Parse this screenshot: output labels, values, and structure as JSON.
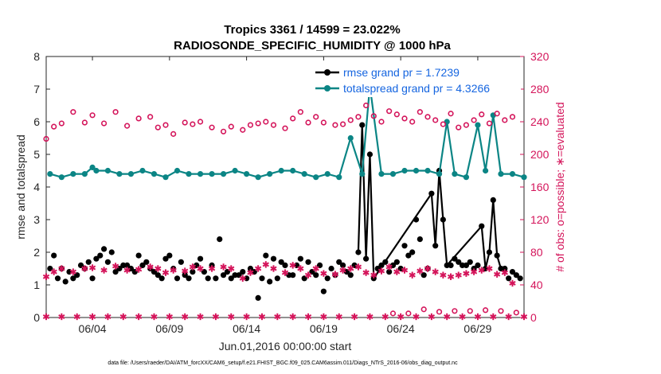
{
  "colors": {
    "rmse": "#000000",
    "spread": "#0b8585",
    "obs": "#d4145a",
    "axis_left": "#262626"
  },
  "chart_data": {
    "type": "line",
    "title": "Tropics 3361 / 14599 = 23.022%",
    "subtitle": "RADIOSONDE_SPECIFIC_HUMIDITY @ 1000 hPa",
    "xlabel": "Jun.01,2016 00:00:00 start",
    "ylabel": "rmse and totalspread",
    "ylabel_right": "# of obs: o=possible; ∗=evaluated",
    "xlim": [
      1,
      32
    ],
    "ylim": [
      0,
      8
    ],
    "ylim_right": [
      0,
      320
    ],
    "xticks": [
      {
        "x": 4,
        "label": "06/04"
      },
      {
        "x": 9,
        "label": "06/09"
      },
      {
        "x": 14,
        "label": "06/14"
      },
      {
        "x": 19,
        "label": "06/19"
      },
      {
        "x": 24,
        "label": "06/24"
      },
      {
        "x": 29,
        "label": "06/29"
      }
    ],
    "yticks": [
      "0",
      "1",
      "2",
      "3",
      "4",
      "5",
      "6",
      "7",
      "8"
    ],
    "yticks_right": [
      "0",
      "40",
      "80",
      "120",
      "160",
      "200",
      "240",
      "280",
      "320"
    ],
    "legend": {
      "position": "top-right",
      "rmse": "rmse grand pr = 1.7239",
      "spread": "totalspread grand pr = 4.3266"
    },
    "footer": "data file: /Users/raeder/DAI/ATM_forcXX/CAM6_setup/f.e21.FHIST_BGC.f09_025.CAM6assim.011/Diags_NTrS_2016-06/obs_diag_output.nc",
    "series": [
      {
        "name": "rmse",
        "axis": "left",
        "style": "line-dot",
        "x": [
          21.25,
          21.5,
          21.75,
          22,
          22.25,
          26,
          26.25,
          26.5,
          26.75,
          27,
          29.25,
          29.5,
          29.75,
          30,
          30.25,
          30.5,
          30.75
        ],
        "y": [
          2.0,
          5.9,
          1.8,
          5.0,
          1.2,
          3.8,
          2.2,
          4.5,
          3.0,
          1.6,
          2.8,
          1.5,
          2.0,
          3.6,
          1.9,
          1.5,
          1.5
        ]
      },
      {
        "name": "rmse_scatter",
        "axis": "left",
        "style": "dot",
        "x": [
          1.25,
          1.5,
          1.75,
          2,
          2.25,
          2.5,
          2.75,
          3,
          3.25,
          3.5,
          3.75,
          4,
          4.25,
          4.5,
          4.75,
          5,
          5.25,
          5.5,
          5.75,
          6,
          6.25,
          6.5,
          6.75,
          7,
          7.25,
          7.5,
          7.75,
          8,
          8.25,
          8.5,
          8.75,
          9,
          9.25,
          9.5,
          9.75,
          10,
          10.25,
          10.5,
          10.75,
          11,
          11.25,
          11.5,
          11.75,
          12,
          12.25,
          12.5,
          12.75,
          13,
          13.25,
          13.5,
          13.75,
          14,
          14.25,
          14.5,
          14.75,
          15,
          15.25,
          15.5,
          15.75,
          16,
          16.25,
          16.5,
          16.75,
          17,
          17.25,
          17.5,
          17.75,
          18,
          18.25,
          18.5,
          18.75,
          19,
          19.25,
          19.5,
          19.75,
          20,
          20.25,
          20.5,
          20.75,
          21,
          22.5,
          22.75,
          23,
          23.25,
          23.5,
          23.75,
          24,
          24.25,
          24.5,
          24.75,
          25,
          25.25,
          25.5,
          25.75,
          27.25,
          27.5,
          27.75,
          28,
          28.25,
          28.5,
          28.75,
          29,
          31,
          31.25,
          31.5,
          31.75
        ],
        "y": [
          1.5,
          1.9,
          1.2,
          1.5,
          1.1,
          1.4,
          1.2,
          1.3,
          1.6,
          1.5,
          1.7,
          1.2,
          1.8,
          1.9,
          2.1,
          1.7,
          2.0,
          1.4,
          1.5,
          1.6,
          1.6,
          1.5,
          1.4,
          1.9,
          1.6,
          1.7,
          1.5,
          1.4,
          1.3,
          1.2,
          1.8,
          1.9,
          1.5,
          1.2,
          1.7,
          1.3,
          1.2,
          1.4,
          1.6,
          1.8,
          1.4,
          1.2,
          1.6,
          1.2,
          2.4,
          1.3,
          1.4,
          1.2,
          1.3,
          1.3,
          1.4,
          1.2,
          1.5,
          1.4,
          0.6,
          1.2,
          1.9,
          1.1,
          1.8,
          1.2,
          1.7,
          1.6,
          1.3,
          1.3,
          1.6,
          1.8,
          1.2,
          1.7,
          1.4,
          1.3,
          1.6,
          0.8,
          1.2,
          1.5,
          1.3,
          1.7,
          1.6,
          1.4,
          1.3,
          1.6,
          1.5,
          1.6,
          1.7,
          1.4,
          1.6,
          1.7,
          1.5,
          2.2,
          1.9,
          2.0,
          3.0,
          2.4,
          1.3,
          1.5,
          1.6,
          1.8,
          1.7,
          1.6,
          1.6,
          1.7,
          1.5,
          1.6,
          1.2,
          1.4,
          1.3,
          1.2
        ]
      },
      {
        "name": "totalspread",
        "axis": "left",
        "style": "line-dot",
        "x": [
          1.25,
          2,
          2.75,
          3.5,
          4,
          4.25,
          5,
          5.75,
          6.5,
          7.25,
          8,
          8.75,
          9.5,
          10.25,
          11,
          11.75,
          12.5,
          13.25,
          14,
          14.75,
          15.5,
          16.25,
          17,
          17.75,
          18.5,
          19.25,
          20,
          20.75,
          21.5,
          22,
          22.75,
          23.5,
          24.25,
          25,
          25.75,
          26.5,
          27,
          27.5,
          28.25,
          29,
          29.5,
          30,
          30.5,
          31.25,
          32
        ],
        "y": [
          4.4,
          4.3,
          4.4,
          4.4,
          4.6,
          4.5,
          4.5,
          4.4,
          4.4,
          4.5,
          4.4,
          4.3,
          4.5,
          4.4,
          4.4,
          4.4,
          4.4,
          4.5,
          4.4,
          4.3,
          4.4,
          4.5,
          4.5,
          4.4,
          4.3,
          4.4,
          4.3,
          5.5,
          4.4,
          7.1,
          4.4,
          4.4,
          4.5,
          4.5,
          4.5,
          4.4,
          6.0,
          4.4,
          4.3,
          5.9,
          4.5,
          6.2,
          4.4,
          4.4,
          4.3
        ]
      },
      {
        "name": "possible",
        "axis": "right",
        "style": "circle",
        "x": [
          1,
          1.5,
          2,
          2.75,
          3.5,
          4,
          4.75,
          5.5,
          6.25,
          7,
          7.75,
          8.25,
          8.75,
          9.25,
          10,
          10.5,
          11,
          11.75,
          12.5,
          13,
          13.75,
          14.25,
          14.75,
          15.25,
          15.75,
          16.5,
          17,
          17.5,
          18,
          18.5,
          19,
          19.75,
          20.25,
          20.75,
          21.25,
          21.75,
          22.25,
          22.75,
          23.25,
          23.75,
          24.25,
          24.75,
          25.25,
          25.75,
          26.25,
          26.75,
          27.25,
          27.75,
          28.25,
          28.75,
          29.25,
          29.75,
          30.25,
          30.75,
          31.25
        ],
        "y": [
          219,
          234,
          238,
          252,
          239,
          248,
          238,
          252,
          235,
          244,
          246,
          233,
          236,
          225,
          239,
          237,
          240,
          233,
          228,
          234,
          230,
          236,
          238,
          240,
          236,
          232,
          244,
          252,
          239,
          246,
          239,
          236,
          237,
          242,
          246,
          260,
          247,
          240,
          253,
          249,
          244,
          240,
          252,
          246,
          242,
          237,
          250,
          233,
          236,
          242,
          249,
          238,
          250,
          242,
          246
        ]
      },
      {
        "name": "evaluated",
        "axis": "right",
        "style": "star",
        "x": [
          1,
          1.5,
          2,
          2.75,
          3.5,
          4,
          4.75,
          5.5,
          6.25,
          7,
          7.75,
          8.25,
          8.75,
          9.25,
          10,
          10.5,
          11,
          11.75,
          12.5,
          13,
          13.75,
          14.25,
          14.75,
          15.25,
          15.75,
          16.5,
          17,
          17.5,
          18,
          18.5,
          19,
          19.75,
          20.25,
          20.75,
          21.25,
          21.75,
          22.25,
          22.75,
          23.25,
          23.75,
          24.25,
          24.75,
          25.25,
          25.75,
          26.25,
          26.75,
          27.25,
          27.75,
          28.25,
          28.75,
          29.25,
          29.75,
          30.25,
          30.75,
          31.25
        ],
        "y": [
          50,
          56,
          60,
          56,
          60,
          61,
          58,
          63,
          58,
          59,
          62,
          60,
          55,
          58,
          57,
          62,
          60,
          60,
          62,
          60,
          48,
          55,
          60,
          65,
          60,
          55,
          64,
          60,
          52,
          60,
          54,
          53,
          58,
          60,
          62,
          55,
          52,
          57,
          62,
          56,
          58,
          52,
          57,
          60,
          56,
          52,
          50,
          52,
          54,
          56,
          58,
          60,
          53,
          55,
          42
        ]
      },
      {
        "name": "possible_low",
        "axis": "right",
        "style": "circle",
        "x": [
          23.5,
          24.5,
          25.5,
          26.5,
          27.5,
          28.5,
          29.5,
          30.5,
          31.5
        ],
        "y": [
          5,
          5,
          10,
          7,
          8,
          8,
          9,
          8,
          6
        ]
      },
      {
        "name": "evaluated_low",
        "axis": "right",
        "style": "star",
        "x": [
          1,
          2,
          3,
          4,
          5,
          6,
          7,
          8,
          9,
          10,
          11,
          12,
          13,
          14,
          15,
          16,
          17,
          18,
          19,
          20,
          21,
          22,
          23,
          24,
          25,
          26,
          27,
          28,
          29,
          30,
          31,
          32
        ],
        "y": [
          1,
          1,
          1,
          1,
          1,
          1,
          1,
          1,
          1,
          1,
          1,
          1,
          1,
          1,
          1,
          1,
          1,
          1,
          1,
          1,
          1,
          1,
          1,
          1,
          1,
          1,
          1,
          1,
          1,
          1,
          1,
          1
        ]
      }
    ]
  }
}
